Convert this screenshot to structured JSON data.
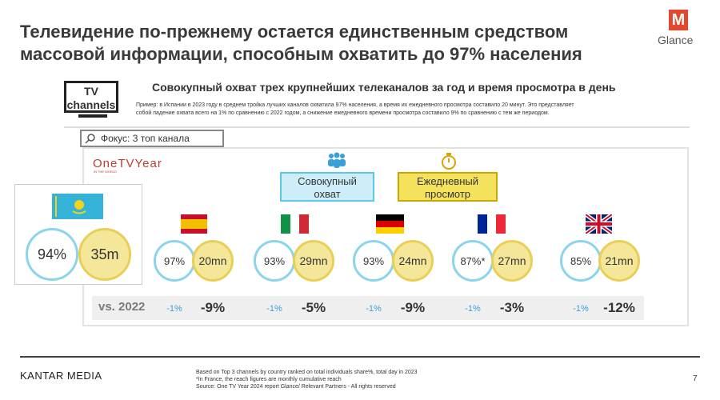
{
  "header": {
    "title_lines": [
      "Телевидение по-прежнему остается единственным средством",
      "массовой информации, способным охватить до 97% населения"
    ]
  },
  "logo": {
    "letter": "M",
    "name": "Glance"
  },
  "tv_badge": {
    "lines": [
      "TV",
      "channels"
    ]
  },
  "subtitle": "Совокупный охват трех крупнейших телеканалов за год и время просмотра в день",
  "note_lines": [
    "Пример: в Испании в 2023 году в среднем тройка лучших каналов охватила 97% населения, а время их ежедневного просмотра составило 20 минут. Это представляет",
    "собой падение охвата всего на 1% по сравнению с 2022 годом, а снижение ежедневного времени просмотра составило 9% по сравнению с тем же периодом."
  ],
  "focus": "Фокус: 3 топ канала",
  "brand": {
    "name": "OneTVYear",
    "tagline": "IN THE WORLD"
  },
  "legend": {
    "reach_lines": [
      "Совокупный",
      "охват"
    ],
    "time_lines": [
      "Ежедневный",
      "просмотр"
    ]
  },
  "kazakhstan": {
    "reach": "94%",
    "time": "35m"
  },
  "countries": [
    {
      "reach": "97%",
      "time": "20mn",
      "reach_change": "-1%",
      "time_change": "-9%"
    },
    {
      "reach": "93%",
      "time": "29mn",
      "reach_change": "-1%",
      "time_change": "-5%"
    },
    {
      "reach": "93%",
      "time": "24mn",
      "reach_change": "-1%",
      "time_change": "-9%"
    },
    {
      "reach": "87%*",
      "time": "27mn",
      "reach_change": "-1%",
      "time_change": "-3%"
    },
    {
      "reach": "85%",
      "time": "21mn",
      "reach_change": "-1%",
      "time_change": "-12%"
    }
  ],
  "comparison_label": "vs. 2022",
  "footer": {
    "company": "KANTAR MEDIA",
    "source_lines": [
      "Based on Top 3 channels by country ranked on total individuals share%, total day in 2023",
      "*In France, the reach figures are monthly cumulative reach",
      "Source: One TV Year 2024 report Glance/ Relevant Partners - All rights reserved"
    ],
    "page": "7"
  }
}
